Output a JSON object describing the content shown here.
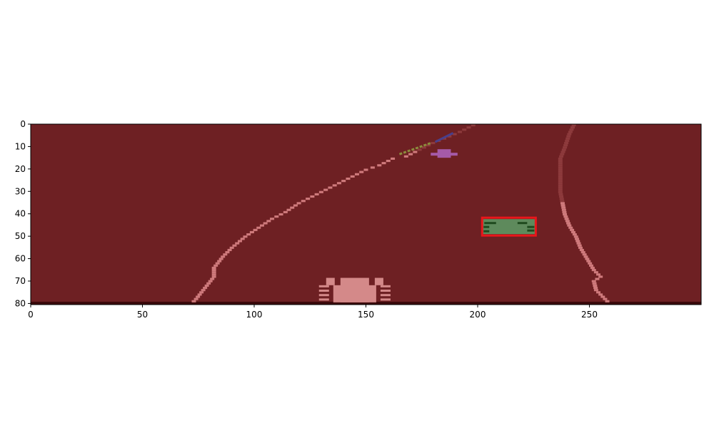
{
  "colors": {
    "page_background": "#ffffff",
    "road": "#6e2023",
    "road_bottom_edge": "#3c0a0c",
    "lane_marking": "#cf7a7c",
    "lane_marking_far": "#8d3a3c",
    "player_car": "#d48989",
    "purple_car": "#a55aa8",
    "blue_object": "#4a3f8a",
    "olive_object": "#8c8c3c",
    "green_car": "#5e8a5c",
    "green_car_detail": "#1f4a1e",
    "target_box": "#e8161a",
    "axis": "#000000"
  },
  "axes": {
    "x_ticks": [
      "0",
      "50",
      "100",
      "150",
      "200",
      "250"
    ],
    "y_ticks": [
      "0",
      "10",
      "20",
      "30",
      "40",
      "50",
      "60",
      "70",
      "80"
    ]
  },
  "scene": {
    "xlim": [
      0,
      300
    ],
    "ylim": [
      0,
      81
    ],
    "left_lane": [
      [
        198,
        0
      ],
      [
        192,
        3
      ],
      [
        185,
        6
      ],
      [
        180,
        8
      ],
      [
        176,
        10
      ],
      [
        172,
        12
      ],
      [
        168,
        14
      ],
      [
        162,
        15
      ],
      [
        156,
        18
      ],
      [
        150,
        20
      ],
      [
        144,
        23
      ],
      [
        138,
        26
      ],
      [
        132,
        29
      ],
      [
        126,
        32
      ],
      [
        120,
        35
      ],
      [
        114,
        39
      ],
      [
        108,
        42
      ],
      [
        102,
        46
      ],
      [
        96,
        50
      ],
      [
        90,
        55
      ],
      [
        86,
        59
      ],
      [
        82,
        64
      ],
      [
        82,
        68
      ],
      [
        78,
        73
      ],
      [
        74,
        78
      ],
      [
        72,
        80
      ]
    ],
    "right_lane": [
      [
        243,
        0
      ],
      [
        241,
        4
      ],
      [
        239,
        10
      ],
      [
        237,
        15
      ],
      [
        237,
        20
      ],
      [
        237,
        25
      ],
      [
        237,
        30
      ],
      [
        238,
        35
      ],
      [
        239,
        40
      ],
      [
        241,
        45
      ],
      [
        244,
        50
      ],
      [
        246,
        55
      ],
      [
        249,
        60
      ],
      [
        252,
        65
      ],
      [
        255,
        68
      ],
      [
        252,
        70
      ],
      [
        253,
        74
      ],
      [
        256,
        77
      ],
      [
        259,
        80
      ]
    ],
    "player_car": {
      "x": 145,
      "y": 74.5,
      "w": 32,
      "h": 11
    },
    "purple_car": {
      "x": 185,
      "y": 13.5,
      "w": 12,
      "h": 4
    },
    "green_car": {
      "x": 214,
      "y": 46,
      "w": 24,
      "h": 8
    },
    "blue_object": {
      "x": 185,
      "y": 6,
      "w": 8,
      "h": 4
    },
    "olive_object": {
      "x": 172,
      "y": 11,
      "w": 14,
      "h": 5
    },
    "target_box": {
      "x0": 202,
      "y0": 42,
      "x1": 226,
      "y1": 50
    }
  }
}
